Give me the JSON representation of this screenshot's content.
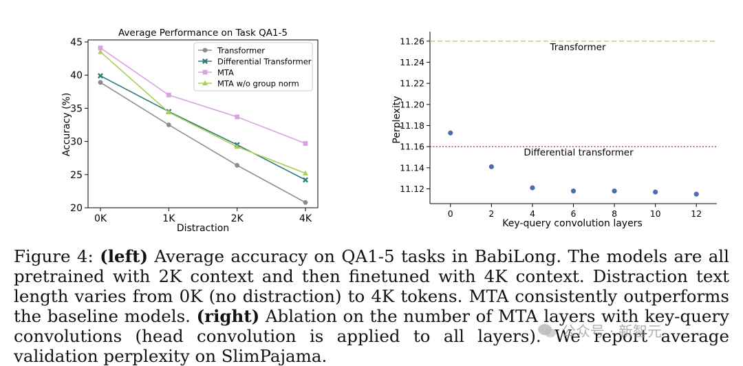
{
  "chart_data": [
    {
      "type": "line",
      "title": "Average Performance on Task QA1-5",
      "xlabel": "Distraction",
      "ylabel": "Accuracy (%)",
      "categories": [
        "0K",
        "1K",
        "2K",
        "4K"
      ],
      "ylim": [
        20,
        45
      ],
      "yticks": [
        "20",
        "25",
        "30",
        "35",
        "40",
        "45"
      ],
      "legend_position": "top-right",
      "series": [
        {
          "name": "Transformer",
          "values": [
            38.9,
            32.5,
            26.4,
            20.8
          ],
          "color": "#8c8c8c",
          "marker": "circle"
        },
        {
          "name": "Differential Transformer",
          "values": [
            39.9,
            34.5,
            29.5,
            24.2
          ],
          "color": "#2a7b78",
          "marker": "x"
        },
        {
          "name": "MTA",
          "values": [
            44.1,
            37.0,
            33.7,
            29.7
          ],
          "color": "#d9a3e3",
          "marker": "square"
        },
        {
          "name": "MTA w/o group norm",
          "values": [
            43.5,
            34.4,
            29.2,
            25.2
          ],
          "color": "#a9cf54",
          "marker": "triangle"
        }
      ]
    },
    {
      "type": "scatter",
      "title": "",
      "xlabel": "Key-query convolution layers",
      "ylabel": "Perplexity",
      "x": [
        0,
        2,
        4,
        6,
        8,
        10,
        12
      ],
      "y": [
        11.173,
        11.141,
        11.121,
        11.118,
        11.118,
        11.117,
        11.115
      ],
      "xticks": [
        "0",
        "2",
        "4",
        "6",
        "8",
        "10",
        "12"
      ],
      "yticks": [
        "11.12",
        "11.14",
        "11.16",
        "11.18",
        "11.20",
        "11.22",
        "11.24",
        "11.26"
      ],
      "xlim": [
        -1,
        13
      ],
      "ylim": [
        11.106,
        11.269
      ],
      "point_color": "#4a6fb0",
      "reference_lines": [
        {
          "label": "Transformer",
          "value": 11.26,
          "color": "#c9c36a",
          "style": "dashed"
        },
        {
          "label": "Differential transformer",
          "value": 11.16,
          "color": "#c0392b",
          "style": "dotted"
        }
      ]
    }
  ],
  "caption": {
    "prefix": "Figure 4: ",
    "left_label": "(left)",
    "left_text": " Average accuracy on QA1-5 tasks in BabiLong. The models are all pretrained with 2K context and then finetuned with 4K context. Distraction text length varies from 0K (no distraction) to 4K tokens. MTA consistently outperforms the baseline models. ",
    "right_label": "(right)",
    "right_text": " Ablation on the number of MTA layers with key-query convolutions (head convolution is applied to all layers). We report average validation perplexity on SlimPajama."
  },
  "watermark": "公众号 · 新智元"
}
